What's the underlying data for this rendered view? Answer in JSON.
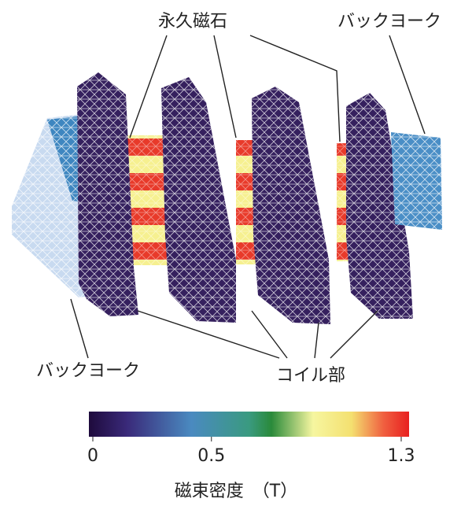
{
  "labels": {
    "magnet": "永久磁石",
    "back_yoke_top": "バックヨーク",
    "back_yoke_bottom": "バックヨーク",
    "coil": "コイル部"
  },
  "colorbar": {
    "lim": [
      0,
      1.3
    ],
    "ticks": [
      0,
      0.5,
      1.3
    ],
    "title": "磁束密度　（T）"
  }
}
